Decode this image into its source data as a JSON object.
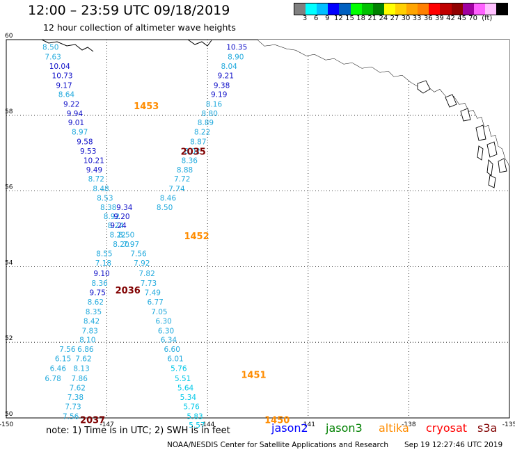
{
  "header": {
    "title": "12:00 – 23:59 UTC 09/18/2019",
    "subtitle": "12 hour collection of altimeter wave heights"
  },
  "colorbar": {
    "colors": [
      "#808080",
      "#00ffff",
      "#00bfff",
      "#0000ff",
      "#0060c0",
      "#00ff00",
      "#00c000",
      "#008000",
      "#ffff00",
      "#ffd000",
      "#ffa500",
      "#ff8000",
      "#ff0000",
      "#c00000",
      "#900000",
      "#a000a0",
      "#ff60ff",
      "#ffc0ff",
      "#000000"
    ],
    "labels": [
      "3",
      "6",
      "9",
      "12",
      "15",
      "18",
      "21",
      "24",
      "27",
      "30",
      "33",
      "36",
      "39",
      "42",
      "45",
      "70",
      "(ft)"
    ]
  },
  "map": {
    "lon_min": -150,
    "lon_max": -135,
    "lat_min": 50,
    "lat_max": 60,
    "lon_ticks": [
      "-150",
      "-147",
      "-144",
      "-141",
      "-138",
      "-135"
    ],
    "lat_ticks": [
      "60",
      "58",
      "56",
      "54",
      "52",
      "50"
    ]
  },
  "tracks": [
    {
      "pass": "1453",
      "color": "#ff8c00",
      "label_lat": 58.25,
      "label_lon": -146.2,
      "points": [
        [
          59.81,
          -148.92,
          "8.50"
        ],
        [
          59.55,
          -148.85,
          "7.63"
        ],
        [
          59.3,
          -148.72,
          "10.04"
        ],
        [
          59.05,
          -148.64,
          "10.73"
        ],
        [
          58.8,
          -148.52,
          "9.17"
        ],
        [
          58.56,
          -148.45,
          "8.64"
        ],
        [
          58.3,
          -148.3,
          "9.22"
        ],
        [
          58.05,
          -148.2,
          "9.94"
        ],
        [
          57.81,
          -148.16,
          "9.01"
        ],
        [
          57.56,
          -148.05,
          "8.97"
        ],
        [
          57.31,
          -147.9,
          "9.58"
        ],
        [
          57.06,
          -147.8,
          "9.53"
        ],
        [
          56.81,
          -147.7,
          "10.21"
        ],
        [
          56.56,
          -147.62,
          "9.49"
        ],
        [
          56.32,
          -147.56,
          "8.72"
        ],
        [
          56.07,
          -147.42,
          "8.48"
        ],
        [
          55.82,
          -147.3,
          "8.53"
        ],
        [
          55.57,
          -147.2,
          "8.38"
        ],
        [
          55.33,
          -147.1,
          "8.92"
        ],
        [
          55.09,
          -146.98,
          "8.24"
        ],
        [
          54.84,
          -146.92,
          "8.22"
        ],
        [
          54.6,
          -146.82,
          "8.20"
        ]
      ]
    },
    {
      "pass": "1452",
      "color": "#ff8c00",
      "label_lat": 54.82,
      "label_lon": -144.7,
      "points": [
        [
          55.57,
          -146.72,
          "9.34"
        ],
        [
          55.33,
          -146.8,
          "9.20"
        ],
        [
          55.09,
          -146.9,
          "9.24"
        ],
        [
          54.84,
          -146.66,
          "8.50"
        ],
        [
          54.6,
          -146.52,
          "7.97"
        ],
        [
          54.35,
          -146.3,
          "7.56"
        ],
        [
          54.1,
          -146.2,
          "7.92"
        ],
        [
          53.82,
          -146.05,
          "7.82"
        ],
        [
          53.57,
          -146.0,
          "7.73"
        ],
        [
          53.32,
          -145.88,
          "7.49"
        ],
        [
          53.07,
          -145.8,
          "6.77"
        ],
        [
          52.81,
          -145.68,
          "7.05"
        ],
        [
          52.56,
          -145.55,
          "6.30"
        ],
        [
          52.31,
          -145.48,
          "6.30"
        ],
        [
          52.07,
          -145.4,
          "6.34"
        ],
        [
          51.82,
          -145.3,
          "6.60"
        ],
        [
          51.57,
          -145.2,
          "6.01"
        ],
        [
          51.31,
          -145.1,
          "5.76"
        ],
        [
          51.05,
          -144.98,
          "5.51"
        ],
        [
          50.8,
          -144.9,
          "5.64"
        ],
        [
          50.55,
          -144.82,
          "5.34"
        ],
        [
          50.3,
          -144.72,
          "5.76"
        ],
        [
          50.05,
          -144.62,
          "5.83"
        ],
        [
          49.82,
          -144.56,
          "5.57"
        ]
      ]
    },
    {
      "pass": "1451",
      "color": "#ff8c00",
      "label_lat": 51.15,
      "label_lon": -143.0,
      "points": []
    },
    {
      "pass": "1450",
      "color": "#ff8c00",
      "label_lat": 49.95,
      "label_lon": -142.3,
      "points": []
    },
    {
      "pass": "2035",
      "color": "#800000",
      "label_lat": 57.05,
      "label_lon": -144.8,
      "points": [
        [
          59.81,
          -143.44,
          "10.35"
        ],
        [
          59.55,
          -143.4,
          "8.90"
        ],
        [
          59.3,
          -143.6,
          "8.04"
        ],
        [
          59.05,
          -143.7,
          "9.21"
        ],
        [
          58.8,
          -143.82,
          "9.38"
        ],
        [
          58.56,
          -143.9,
          "9.19"
        ],
        [
          58.3,
          -144.05,
          "8.16"
        ],
        [
          58.05,
          -144.18,
          "8.80"
        ],
        [
          57.81,
          -144.3,
          "8.89"
        ],
        [
          57.56,
          -144.4,
          "8.22"
        ],
        [
          57.31,
          -144.52,
          "8.87"
        ],
        [
          57.06,
          -144.7,
          "8.02"
        ],
        [
          56.81,
          -144.78,
          "8.36"
        ],
        [
          56.56,
          -144.92,
          "8.88"
        ],
        [
          56.32,
          -145.0,
          "7.72"
        ],
        [
          56.07,
          -145.16,
          "7.74"
        ],
        [
          55.82,
          -145.42,
          "8.46"
        ],
        [
          55.57,
          -145.52,
          "8.50"
        ]
      ]
    },
    {
      "pass": "2036",
      "color": "#800000",
      "label_lat": 53.38,
      "label_lon": -146.75,
      "points": [
        [
          54.35,
          -147.32,
          "8.55"
        ],
        [
          54.1,
          -147.35,
          "7.18"
        ],
        [
          53.82,
          -147.4,
          "9.10"
        ],
        [
          53.57,
          -147.46,
          "8.36"
        ],
        [
          53.32,
          -147.52,
          "9.75"
        ],
        [
          53.07,
          -147.58,
          "8.62"
        ],
        [
          52.81,
          -147.64,
          "8.35"
        ],
        [
          52.56,
          -147.7,
          "8.42"
        ],
        [
          52.31,
          -147.75,
          "7.83"
        ],
        [
          52.07,
          -147.82,
          "8.10"
        ],
        [
          51.82,
          -147.88,
          "6.86"
        ],
        [
          51.57,
          -147.94,
          "7.62"
        ],
        [
          51.31,
          -148.0,
          "8.13"
        ],
        [
          51.05,
          -148.06,
          "7.86"
        ],
        [
          50.8,
          -148.12,
          "7.62"
        ],
        [
          50.55,
          -148.18,
          "7.38"
        ],
        [
          50.3,
          -148.25,
          "7.73"
        ],
        [
          50.05,
          -148.32,
          "7.56"
        ]
      ]
    },
    {
      "pass": "2037",
      "color": "#800000",
      "label_lat": 49.95,
      "label_lon": -147.8,
      "points": [
        [
          51.82,
          -148.42,
          "7.56"
        ],
        [
          51.57,
          -148.55,
          "6.15"
        ],
        [
          51.31,
          -148.7,
          "6.46"
        ],
        [
          51.05,
          -148.85,
          "6.78"
        ]
      ]
    }
  ],
  "footer": {
    "note": "note: 1) Time is in UTC; 2) SWH is in feet",
    "satellites": [
      {
        "name": "jason2",
        "color": "#0000ff"
      },
      {
        "name": "jason3",
        "color": "#008000"
      },
      {
        "name": "altika",
        "color": "#ff8c00"
      },
      {
        "name": "cryosat",
        "color": "#ff0000"
      },
      {
        "name": "s3a",
        "color": "#800000"
      }
    ],
    "credit": "NOAA/NESDIS Center for Satellite Applications and Research",
    "timestamp": "Sep 19 12:27:46 UTC 2019"
  }
}
